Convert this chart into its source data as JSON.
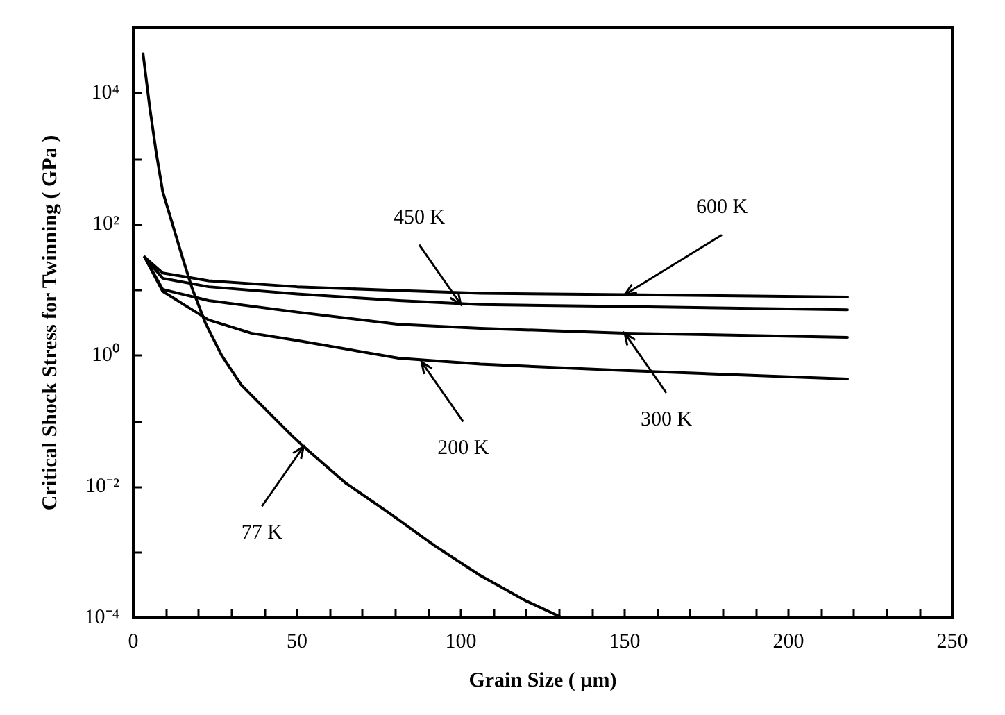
{
  "chart_data": {
    "type": "line",
    "xlabel": "Grain Size ( µm)",
    "ylabel": "Critical Shock Stress for Twinning ( GPa )",
    "log": "y",
    "grid": false,
    "marker": "none",
    "line_style": "solid",
    "xlim": [
      0,
      250
    ],
    "ylim": [
      0.0001,
      100000
    ],
    "xticks": [
      0,
      {
        "value": 10,
        "label": null
      },
      {
        "value": 20,
        "label": null
      },
      {
        "value": 30,
        "label": null
      },
      {
        "value": 40,
        "label": null
      },
      50,
      {
        "value": 60,
        "label": null
      },
      {
        "value": 70,
        "label": null
      },
      {
        "value": 80,
        "label": null
      },
      {
        "value": 90,
        "label": null
      },
      100,
      {
        "value": 110,
        "label": null
      },
      {
        "value": 120,
        "label": null
      },
      {
        "value": 130,
        "label": null
      },
      {
        "value": 140,
        "label": null
      },
      150,
      {
        "value": 160,
        "label": null
      },
      {
        "value": 170,
        "label": null
      },
      {
        "value": 180,
        "label": null
      },
      {
        "value": 190,
        "label": null
      },
      200,
      {
        "value": 210,
        "label": null
      },
      {
        "value": 220,
        "label": null
      },
      {
        "value": 230,
        "label": null
      },
      {
        "value": 240,
        "label": null
      },
      250
    ],
    "yticks": [
      {
        "value": 0.0001,
        "label": "10⁻⁴"
      },
      {
        "value": 0.001,
        "label": null
      },
      {
        "value": 0.01,
        "label": "10⁻²"
      },
      {
        "value": 0.1,
        "label": null
      },
      {
        "value": 1,
        "label": "10⁰"
      },
      {
        "value": 10,
        "label": null
      },
      {
        "value": 100,
        "label": "10²"
      },
      {
        "value": 1000,
        "label": null
      },
      {
        "value": 10000,
        "label": "10⁴"
      },
      {
        "value": 100000,
        "label": null
      }
    ],
    "series": [
      {
        "color": "#000000",
        "x": [
          3,
          5,
          7,
          9,
          12,
          15,
          18,
          22,
          27,
          33,
          40,
          48,
          52,
          65,
          78,
          92,
          106,
          120,
          131
        ],
        "values": [
          40000,
          6300,
          1260,
          316,
          100,
          31.6,
          10.5,
          3.16,
          1,
          0.355,
          0.158,
          0.063,
          0.041,
          0.0112,
          0.004,
          0.00126,
          0.00044,
          0.00018,
          0.0001
        ]
      },
      {
        "color": "#000000",
        "x": [
          3.5,
          9,
          23,
          36,
          50,
          81,
          106,
          150,
          218
        ],
        "values": [
          31.6,
          9.5,
          3.5,
          2.2,
          1.7,
          0.91,
          0.74,
          0.59,
          0.44
        ]
      },
      {
        "color": "#000000",
        "x": [
          3.5,
          9,
          23,
          50,
          81,
          106,
          150,
          218
        ],
        "values": [
          31.6,
          10.2,
          6.9,
          4.6,
          3.0,
          2.6,
          2.2,
          1.9
        ]
      },
      {
        "color": "#000000",
        "x": [
          3.5,
          9,
          23,
          50,
          81,
          106,
          150,
          218
        ],
        "values": [
          31.6,
          15.1,
          11.2,
          8.7,
          6.9,
          6.0,
          5.6,
          5.0
        ]
      },
      {
        "color": "#000000",
        "x": [
          3.5,
          9,
          23,
          50,
          81,
          106,
          150,
          218
        ],
        "values": [
          31.6,
          18.2,
          13.8,
          11.2,
          9.8,
          8.9,
          8.5,
          7.8
        ]
      }
    ],
    "annotations": [
      {
        "text": "77 K",
        "x": 52,
        "y": 0.041
      },
      {
        "text": "200 K",
        "x": 88,
        "y": 0.8
      },
      {
        "text": "300 K",
        "x": 150,
        "y": 2.2
      },
      {
        "text": "450 K",
        "x": 100,
        "y": 6.0
      },
      {
        "text": "600 K",
        "x": 150,
        "y": 8.5
      }
    ]
  }
}
